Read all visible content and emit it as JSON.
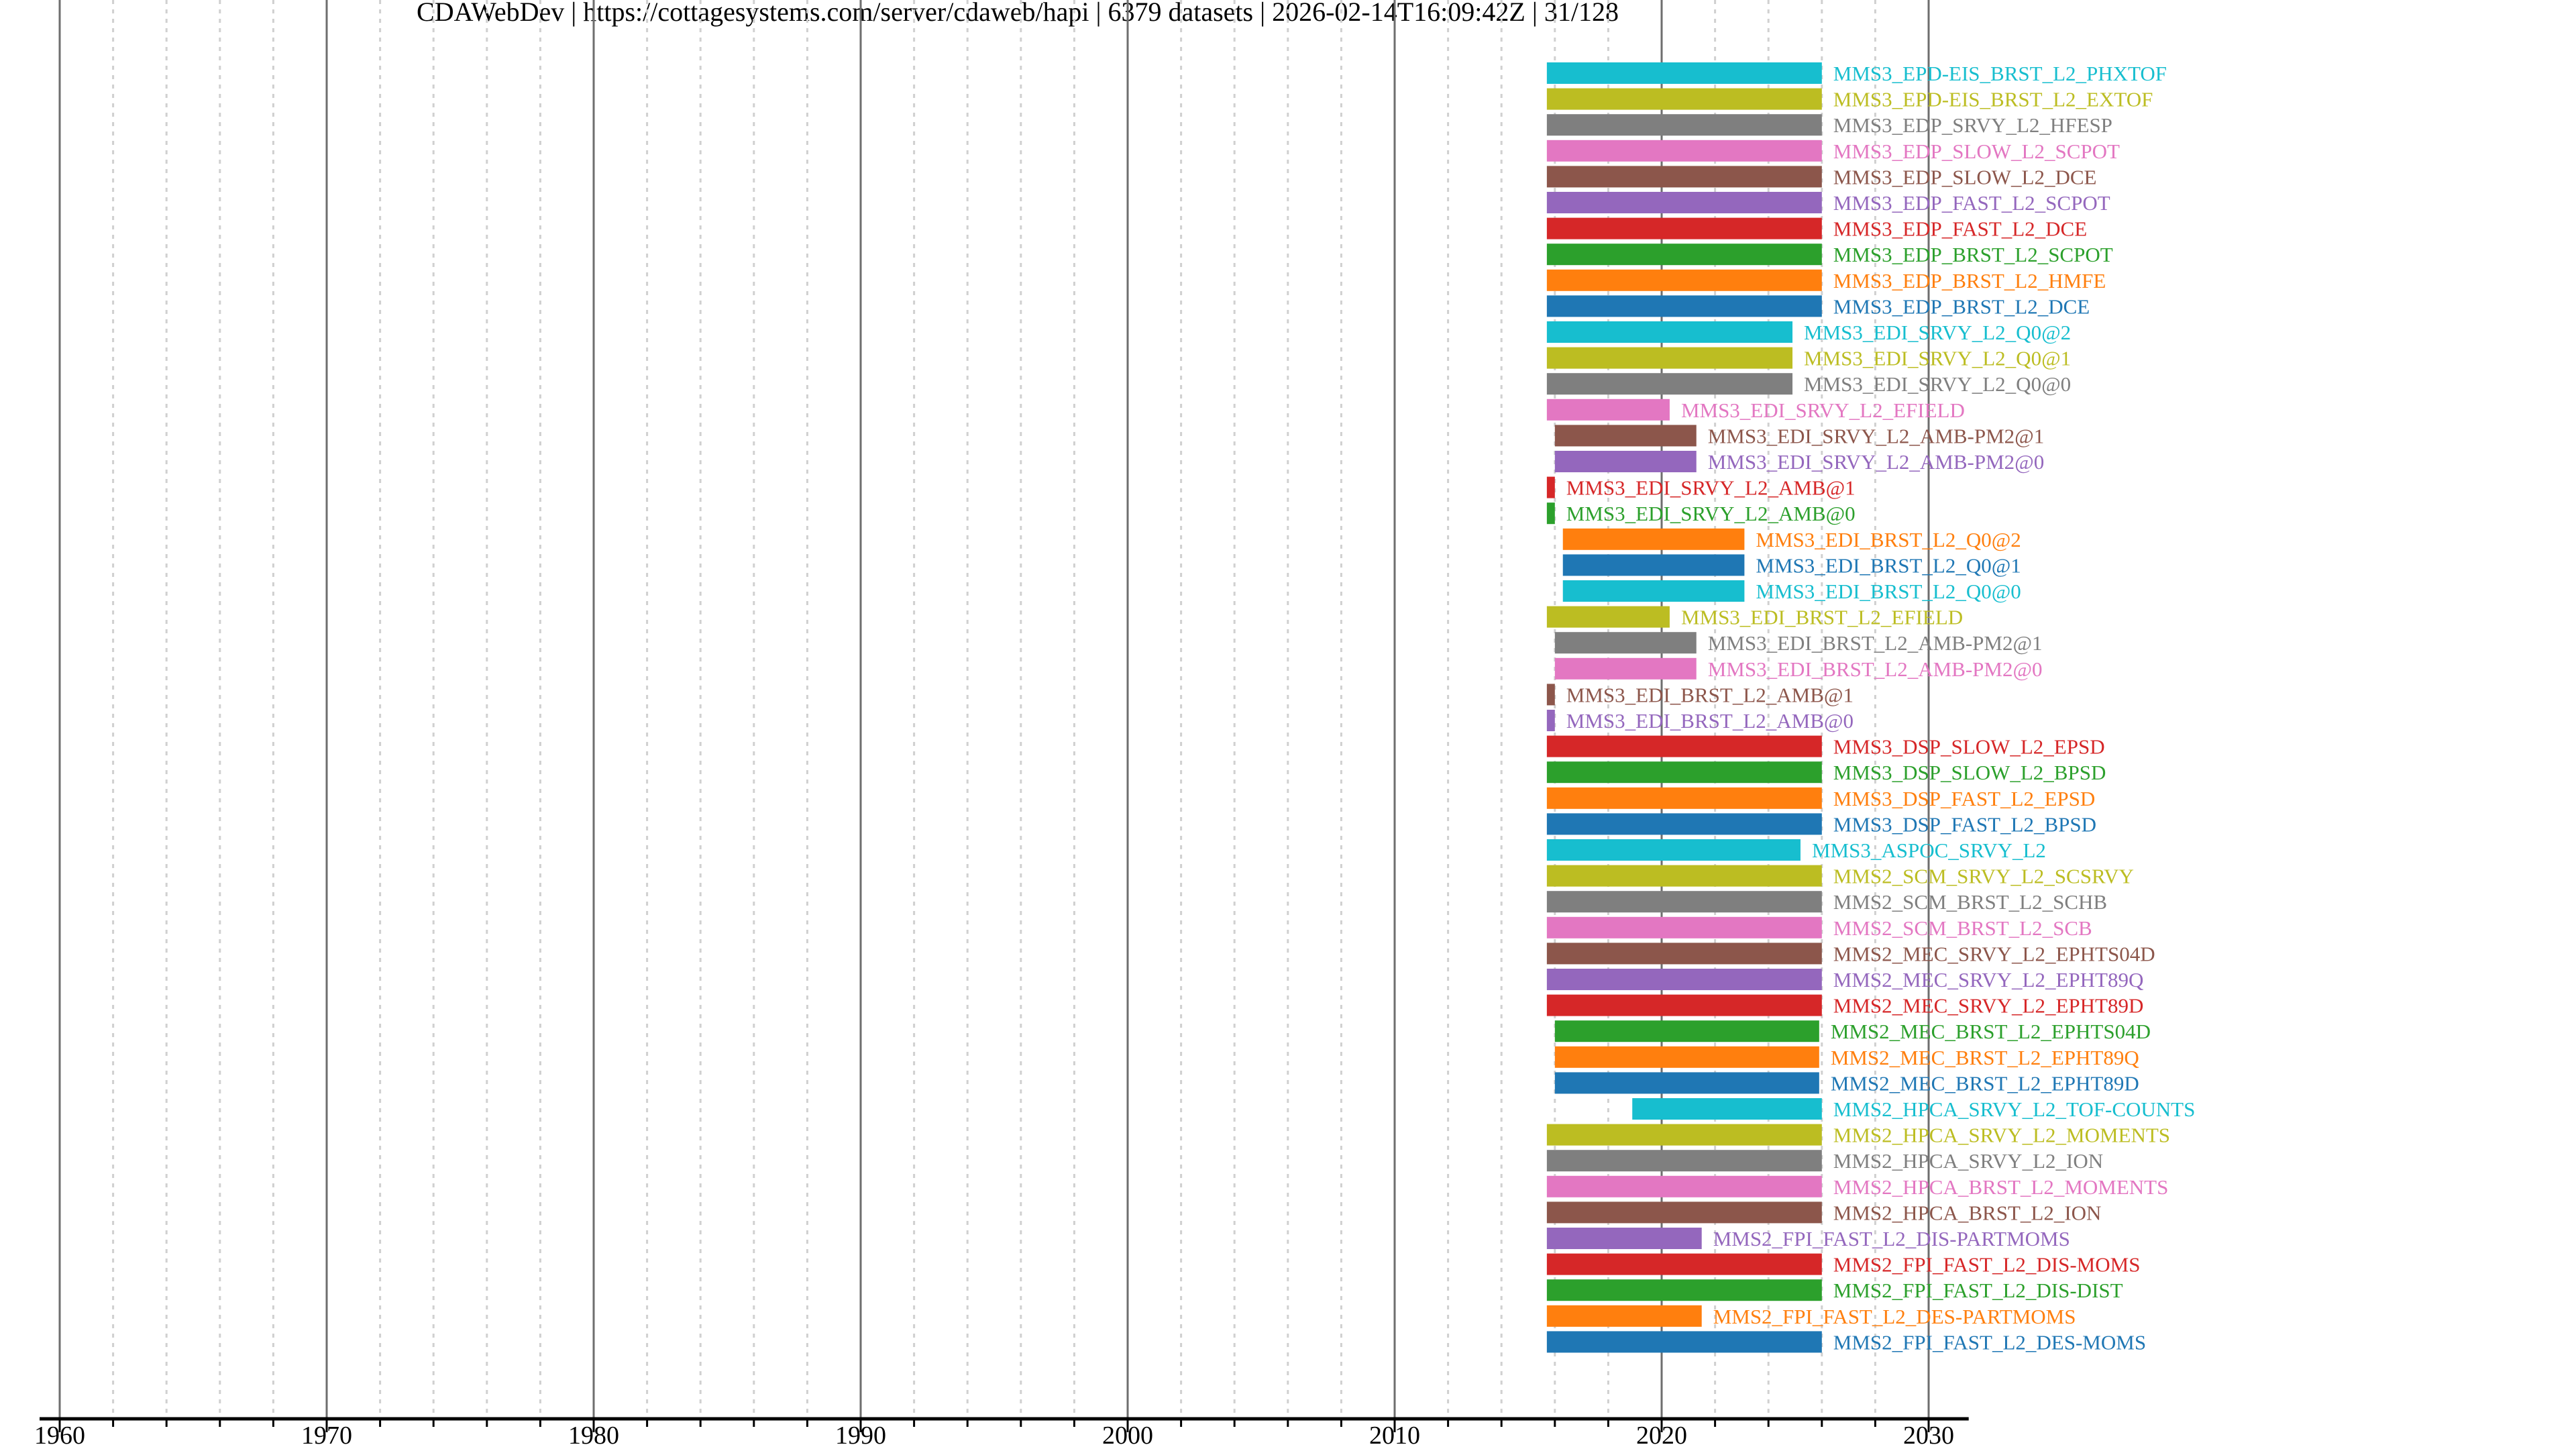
{
  "chart_data": {
    "type": "bar",
    "orientation": "horizontal-timeline",
    "title": "CDAWebDev | https://cottagesystems.com/server/cdaweb/hapi | 6379 datasets | 2026-02-14T16:09:42Z | 31/128",
    "xlabel": "",
    "ylabel": "",
    "xlim": [
      1960,
      2031.5
    ],
    "x_ticks": [
      "1960",
      "1970",
      "1980",
      "1990",
      "2000",
      "2010",
      "2020",
      "2030"
    ],
    "grid": "major solid every 10 years, minor dotted every 2 years",
    "palette": {
      "blue": "#1f77b4",
      "orange": "#ff7f0e",
      "green": "#2ca02c",
      "red": "#d62728",
      "purple": "#9467bd",
      "brown": "#8c564b",
      "pink": "#e377c2",
      "gray": "#7f7f7f",
      "olive": "#bcbd22",
      "cyan": "#17becf"
    },
    "series": [
      {
        "name": "MMS3_EPD-EIS_BRST_L2_PHXTOF",
        "start": 2015.7,
        "end": 2026.0,
        "color": "#17becf"
      },
      {
        "name": "MMS3_EPD-EIS_BRST_L2_EXTOF",
        "start": 2015.7,
        "end": 2026.0,
        "color": "#bcbd22"
      },
      {
        "name": "MMS3_EDP_SRVY_L2_HFESP",
        "start": 2015.7,
        "end": 2026.0,
        "color": "#7f7f7f"
      },
      {
        "name": "MMS3_EDP_SLOW_L2_SCPOT",
        "start": 2015.7,
        "end": 2026.0,
        "color": "#e377c2"
      },
      {
        "name": "MMS3_EDP_SLOW_L2_DCE",
        "start": 2015.7,
        "end": 2026.0,
        "color": "#8c564b"
      },
      {
        "name": "MMS3_EDP_FAST_L2_SCPOT",
        "start": 2015.7,
        "end": 2026.0,
        "color": "#9467bd"
      },
      {
        "name": "MMS3_EDP_FAST_L2_DCE",
        "start": 2015.7,
        "end": 2026.0,
        "color": "#d62728"
      },
      {
        "name": "MMS3_EDP_BRST_L2_SCPOT",
        "start": 2015.7,
        "end": 2026.0,
        "color": "#2ca02c"
      },
      {
        "name": "MMS3_EDP_BRST_L2_HMFE",
        "start": 2015.7,
        "end": 2026.0,
        "color": "#ff7f0e"
      },
      {
        "name": "MMS3_EDP_BRST_L2_DCE",
        "start": 2015.7,
        "end": 2026.0,
        "color": "#1f77b4"
      },
      {
        "name": "MMS3_EDI_SRVY_L2_Q0@2",
        "start": 2015.7,
        "end": 2024.9,
        "color": "#17becf"
      },
      {
        "name": "MMS3_EDI_SRVY_L2_Q0@1",
        "start": 2015.7,
        "end": 2024.9,
        "color": "#bcbd22"
      },
      {
        "name": "MMS3_EDI_SRVY_L2_Q0@0",
        "start": 2015.7,
        "end": 2024.9,
        "color": "#7f7f7f"
      },
      {
        "name": "MMS3_EDI_SRVY_L2_EFIELD",
        "start": 2015.7,
        "end": 2020.3,
        "color": "#e377c2"
      },
      {
        "name": "MMS3_EDI_SRVY_L2_AMB-PM2@1",
        "start": 2016.0,
        "end": 2021.3,
        "color": "#8c564b"
      },
      {
        "name": "MMS3_EDI_SRVY_L2_AMB-PM2@0",
        "start": 2016.0,
        "end": 2021.3,
        "color": "#9467bd"
      },
      {
        "name": "MMS3_EDI_SRVY_L2_AMB@1",
        "start": 2015.7,
        "end": 2016.0,
        "color": "#d62728"
      },
      {
        "name": "MMS3_EDI_SRVY_L2_AMB@0",
        "start": 2015.7,
        "end": 2016.0,
        "color": "#2ca02c"
      },
      {
        "name": "MMS3_EDI_BRST_L2_Q0@2",
        "start": 2016.3,
        "end": 2023.1,
        "color": "#ff7f0e"
      },
      {
        "name": "MMS3_EDI_BRST_L2_Q0@1",
        "start": 2016.3,
        "end": 2023.1,
        "color": "#1f77b4"
      },
      {
        "name": "MMS3_EDI_BRST_L2_Q0@0",
        "start": 2016.3,
        "end": 2023.1,
        "color": "#17becf"
      },
      {
        "name": "MMS3_EDI_BRST_L2_EFIELD",
        "start": 2015.7,
        "end": 2020.3,
        "color": "#bcbd22"
      },
      {
        "name": "MMS3_EDI_BRST_L2_AMB-PM2@1",
        "start": 2016.0,
        "end": 2021.3,
        "color": "#7f7f7f"
      },
      {
        "name": "MMS3_EDI_BRST_L2_AMB-PM2@0",
        "start": 2016.0,
        "end": 2021.3,
        "color": "#e377c2"
      },
      {
        "name": "MMS3_EDI_BRST_L2_AMB@1",
        "start": 2015.7,
        "end": 2016.0,
        "color": "#8c564b"
      },
      {
        "name": "MMS3_EDI_BRST_L2_AMB@0",
        "start": 2015.7,
        "end": 2016.0,
        "color": "#9467bd"
      },
      {
        "name": "MMS3_DSP_SLOW_L2_EPSD",
        "start": 2015.7,
        "end": 2026.0,
        "color": "#d62728"
      },
      {
        "name": "MMS3_DSP_SLOW_L2_BPSD",
        "start": 2015.7,
        "end": 2026.0,
        "color": "#2ca02c"
      },
      {
        "name": "MMS3_DSP_FAST_L2_EPSD",
        "start": 2015.7,
        "end": 2026.0,
        "color": "#ff7f0e"
      },
      {
        "name": "MMS3_DSP_FAST_L2_BPSD",
        "start": 2015.7,
        "end": 2026.0,
        "color": "#1f77b4"
      },
      {
        "name": "MMS3_ASPOC_SRVY_L2",
        "start": 2015.7,
        "end": 2025.2,
        "color": "#17becf"
      },
      {
        "name": "MMS2_SCM_SRVY_L2_SCSRVY",
        "start": 2015.7,
        "end": 2026.0,
        "color": "#bcbd22"
      },
      {
        "name": "MMS2_SCM_BRST_L2_SCHB",
        "start": 2015.7,
        "end": 2026.0,
        "color": "#7f7f7f"
      },
      {
        "name": "MMS2_SCM_BRST_L2_SCB",
        "start": 2015.7,
        "end": 2026.0,
        "color": "#e377c2"
      },
      {
        "name": "MMS2_MEC_SRVY_L2_EPHTS04D",
        "start": 2015.7,
        "end": 2026.0,
        "color": "#8c564b"
      },
      {
        "name": "MMS2_MEC_SRVY_L2_EPHT89Q",
        "start": 2015.7,
        "end": 2026.0,
        "color": "#9467bd"
      },
      {
        "name": "MMS2_MEC_SRVY_L2_EPHT89D",
        "start": 2015.7,
        "end": 2026.0,
        "color": "#d62728"
      },
      {
        "name": "MMS2_MEC_BRST_L2_EPHTS04D",
        "start": 2016.0,
        "end": 2025.9,
        "color": "#2ca02c"
      },
      {
        "name": "MMS2_MEC_BRST_L2_EPHT89Q",
        "start": 2016.0,
        "end": 2025.9,
        "color": "#ff7f0e"
      },
      {
        "name": "MMS2_MEC_BRST_L2_EPHT89D",
        "start": 2016.0,
        "end": 2025.9,
        "color": "#1f77b4"
      },
      {
        "name": "MMS2_HPCA_SRVY_L2_TOF-COUNTS",
        "start": 2018.9,
        "end": 2026.0,
        "color": "#17becf"
      },
      {
        "name": "MMS2_HPCA_SRVY_L2_MOMENTS",
        "start": 2015.7,
        "end": 2026.0,
        "color": "#bcbd22"
      },
      {
        "name": "MMS2_HPCA_SRVY_L2_ION",
        "start": 2015.7,
        "end": 2026.0,
        "color": "#7f7f7f"
      },
      {
        "name": "MMS2_HPCA_BRST_L2_MOMENTS",
        "start": 2015.7,
        "end": 2026.0,
        "color": "#e377c2"
      },
      {
        "name": "MMS2_HPCA_BRST_L2_ION",
        "start": 2015.7,
        "end": 2026.0,
        "color": "#8c564b"
      },
      {
        "name": "MMS2_FPI_FAST_L2_DIS-PARTMOMS",
        "start": 2015.7,
        "end": 2021.5,
        "color": "#9467bd"
      },
      {
        "name": "MMS2_FPI_FAST_L2_DIS-MOMS",
        "start": 2015.7,
        "end": 2026.0,
        "color": "#d62728"
      },
      {
        "name": "MMS2_FPI_FAST_L2_DIS-DIST",
        "start": 2015.7,
        "end": 2026.0,
        "color": "#2ca02c"
      },
      {
        "name": "MMS2_FPI_FAST_L2_DES-PARTMOMS",
        "start": 2015.7,
        "end": 2021.5,
        "color": "#ff7f0e"
      },
      {
        "name": "MMS2_FPI_FAST_L2_DES-MOMS",
        "start": 2015.7,
        "end": 2026.0,
        "color": "#1f77b4"
      }
    ]
  }
}
